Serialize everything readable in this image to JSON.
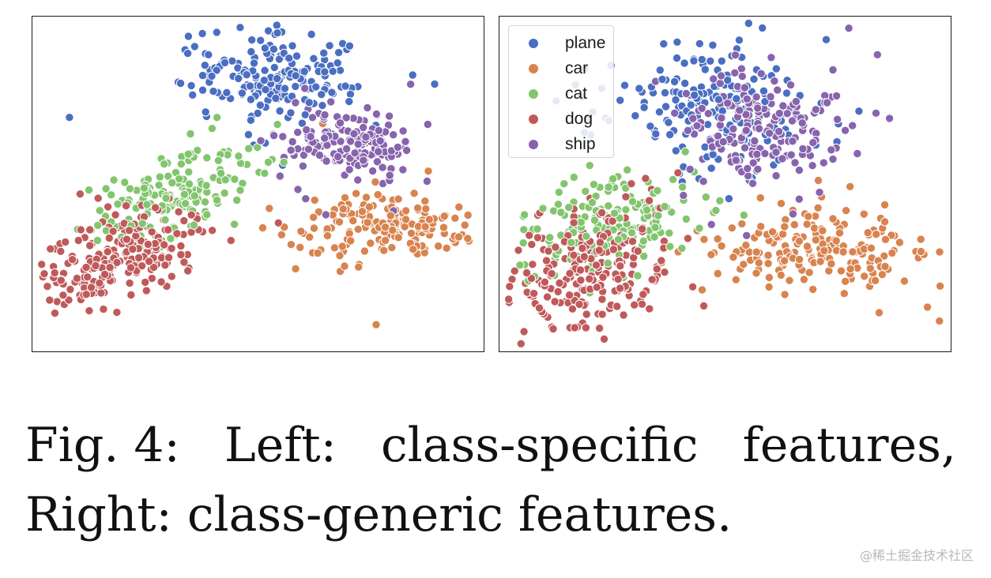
{
  "chart_data": [
    {
      "type": "scatter",
      "panel": "left",
      "legend": false,
      "axes_visible": false,
      "series": [
        {
          "name": "plane",
          "color": "#4a6ec2",
          "cluster": {
            "cx": 0.54,
            "cy": 0.81,
            "sx": 0.09,
            "sy": 0.075,
            "n": 190,
            "rot": -0.1
          }
        },
        {
          "name": "car",
          "color": "#d9834f",
          "cluster": {
            "cx": 0.79,
            "cy": 0.37,
            "sx": 0.1,
            "sy": 0.05,
            "n": 190,
            "rot": -0.05
          }
        },
        {
          "name": "cat",
          "color": "#82c56e",
          "cluster": {
            "cx": 0.31,
            "cy": 0.47,
            "sx": 0.1,
            "sy": 0.05,
            "n": 170,
            "rot": 0.55
          }
        },
        {
          "name": "dog",
          "color": "#c05a5a",
          "cluster": {
            "cx": 0.19,
            "cy": 0.27,
            "sx": 0.11,
            "sy": 0.055,
            "n": 230,
            "rot": 0.6
          }
        },
        {
          "name": "ship",
          "color": "#8764ad",
          "cluster": {
            "cx": 0.71,
            "cy": 0.62,
            "sx": 0.07,
            "sy": 0.05,
            "n": 170,
            "rot": -0.2
          }
        }
      ]
    },
    {
      "type": "scatter",
      "panel": "right",
      "legend": true,
      "legend_position": "top-left",
      "axes_visible": false,
      "series": [
        {
          "name": "plane",
          "color": "#4a6ec2",
          "cluster": {
            "cx": 0.48,
            "cy": 0.73,
            "sx": 0.11,
            "sy": 0.1,
            "n": 190,
            "rot": -0.3
          }
        },
        {
          "name": "car",
          "color": "#d9834f",
          "cluster": {
            "cx": 0.71,
            "cy": 0.31,
            "sx": 0.11,
            "sy": 0.065,
            "n": 200,
            "rot": 0.0
          }
        },
        {
          "name": "cat",
          "color": "#82c56e",
          "cluster": {
            "cx": 0.25,
            "cy": 0.39,
            "sx": 0.11,
            "sy": 0.07,
            "n": 170,
            "rot": 0.5
          }
        },
        {
          "name": "dog",
          "color": "#c05a5a",
          "cluster": {
            "cx": 0.2,
            "cy": 0.24,
            "sx": 0.1,
            "sy": 0.08,
            "n": 230,
            "rot": 0.6
          }
        },
        {
          "name": "ship",
          "color": "#8764ad",
          "cluster": {
            "cx": 0.58,
            "cy": 0.67,
            "sx": 0.09,
            "sy": 0.085,
            "n": 190,
            "rot": -0.25
          }
        }
      ]
    }
  ],
  "legend": {
    "items": [
      {
        "label": "plane",
        "color": "#4a6ec2"
      },
      {
        "label": "car",
        "color": "#d9834f"
      },
      {
        "label": "cat",
        "color": "#82c56e"
      },
      {
        "label": "dog",
        "color": "#c05a5a"
      },
      {
        "label": "ship",
        "color": "#8764ad"
      }
    ]
  },
  "caption": {
    "line1_words": [
      "Fig. 4:",
      "Left:",
      "class-specific",
      "features,"
    ],
    "line2": "Right: class-generic features."
  },
  "watermark": "@稀土掘金技术社区"
}
